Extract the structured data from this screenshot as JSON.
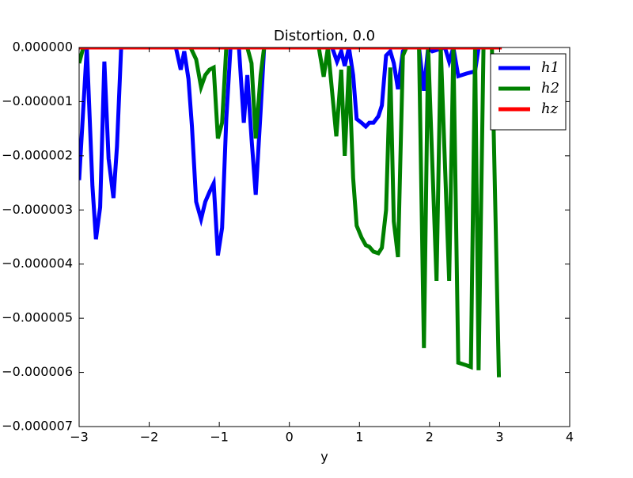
{
  "chart_data": {
    "type": "line",
    "title": "Distortion, 0.0",
    "xlabel": "y",
    "xlim": [
      -3,
      4
    ],
    "ylim": [
      -7e-06,
      0
    ],
    "xticks": [
      {
        "value": -3,
        "label": "−3"
      },
      {
        "value": -2,
        "label": "−2"
      },
      {
        "value": -1,
        "label": "−1"
      },
      0,
      1,
      2,
      3,
      4
    ],
    "yticks": [
      {
        "value": 0,
        "label": "0.000000"
      },
      {
        "value": -1e-06,
        "label": "−0.000001"
      },
      {
        "value": -2e-06,
        "label": "−0.000002"
      },
      {
        "value": -3e-06,
        "label": "−0.000003"
      },
      {
        "value": -4e-06,
        "label": "−0.000004"
      },
      {
        "value": -5e-06,
        "label": "−0.000005"
      },
      {
        "value": -6e-06,
        "label": "−0.000006"
      },
      {
        "value": -7e-06,
        "label": "−0.000007"
      }
    ],
    "legend": "upper right",
    "series": [
      {
        "name": "h1",
        "color": "#0000ff",
        "x": [
          -3,
          -2.89,
          -2.81,
          -2.76,
          -2.7,
          -2.64,
          -2.58,
          -2.51,
          -2.46,
          -2.4,
          -1.62,
          -1.55,
          -1.5,
          -1.44,
          -1.39,
          -1.33,
          -1.26,
          -1.2,
          -1.14,
          -1.08,
          -1.02,
          -0.96,
          -0.9,
          -0.84,
          -0.72,
          -0.65,
          -0.6,
          -0.54,
          -0.48,
          -0.41,
          -0.36,
          0.61,
          0.68,
          0.74,
          0.79,
          0.85,
          0.91,
          0.96,
          1.03,
          1.09,
          1.14,
          1.2,
          1.27,
          1.32,
          1.38,
          1.44,
          1.49,
          1.55,
          1.62,
          1.67,
          1.85,
          1.92,
          1.98,
          2.04,
          2.22,
          2.28,
          2.34,
          2.41,
          2.53,
          2.65,
          2.7,
          3.03
        ],
        "values": [
          -2.45e-06,
          0,
          -2.56e-06,
          -3.54e-06,
          -2.95e-06,
          -2.6e-07,
          -2.05e-06,
          -2.78e-06,
          -1.83e-06,
          0,
          0,
          -4.1e-07,
          -7e-08,
          -5.8e-07,
          -1.46e-06,
          -2.85e-06,
          -3.17e-06,
          -2.85e-06,
          -2.67e-06,
          -2.51e-06,
          -3.84e-06,
          -3.33e-06,
          -1.32e-06,
          0,
          0,
          -1.39e-06,
          -5.1e-07,
          -1.68e-06,
          -2.72e-06,
          -1.17e-06,
          0,
          0,
          -2.6e-07,
          -7e-08,
          -3.4e-07,
          0,
          -5.1e-07,
          -1.32e-06,
          -1.39e-06,
          -1.46e-06,
          -1.39e-06,
          -1.39e-06,
          -1.27e-06,
          -1.07e-06,
          -1.5e-07,
          -7e-08,
          -2.9e-07,
          -7.7e-07,
          -7e-08,
          0,
          0,
          -8e-07,
          0,
          -7e-08,
          0,
          -2.6e-07,
          0,
          -5.3e-07,
          -4.8e-07,
          -4.4e-07,
          0,
          0
        ]
      },
      {
        "name": "h2",
        "color": "#008000",
        "x": [
          -3,
          -2.94,
          -1.41,
          -1.33,
          -1.26,
          -1.2,
          -1.14,
          -1.08,
          -1.02,
          -0.96,
          -0.9,
          -0.6,
          -0.54,
          -0.48,
          -0.41,
          -0.36,
          0.42,
          0.49,
          0.55,
          0.67,
          0.74,
          0.79,
          0.85,
          0.91,
          0.96,
          1.03,
          1.09,
          1.14,
          1.2,
          1.27,
          1.32,
          1.38,
          1.44,
          1.49,
          1.55,
          1.62,
          1.67,
          1.85,
          1.92,
          1.98,
          2.1,
          2.16,
          2.28,
          2.34,
          2.41,
          2.53,
          2.59,
          2.65,
          2.7,
          2.77,
          2.89,
          2.99
        ],
        "values": [
          -2.9e-07,
          0,
          0,
          -2.2e-07,
          -7.3e-07,
          -5.1e-07,
          -4.1e-07,
          -3.7e-07,
          -1.68e-06,
          -1.39e-06,
          0,
          0,
          -2.9e-07,
          -1.68e-06,
          -5.1e-07,
          0,
          0,
          -5.4e-07,
          0,
          -1.64e-06,
          -4.1e-07,
          -2e-06,
          -3.4e-07,
          -2.41e-06,
          -3.29e-06,
          -3.51e-06,
          -3.65e-06,
          -3.68e-06,
          -3.77e-06,
          -3.8e-06,
          -3.7e-06,
          -3e-06,
          -3.7e-07,
          -3.21e-06,
          -3.87e-06,
          -1.5e-07,
          0,
          0,
          -5.55e-06,
          0,
          -4.31e-06,
          0,
          -4.31e-06,
          0,
          -5.82e-06,
          -5.87e-06,
          -5.9e-06,
          0,
          -5.96e-06,
          0,
          0,
          -6.09e-06
        ]
      },
      {
        "name": "hz",
        "color": "#ff0000",
        "x": [
          -3,
          3.03
        ],
        "values": [
          0,
          0
        ]
      }
    ]
  }
}
